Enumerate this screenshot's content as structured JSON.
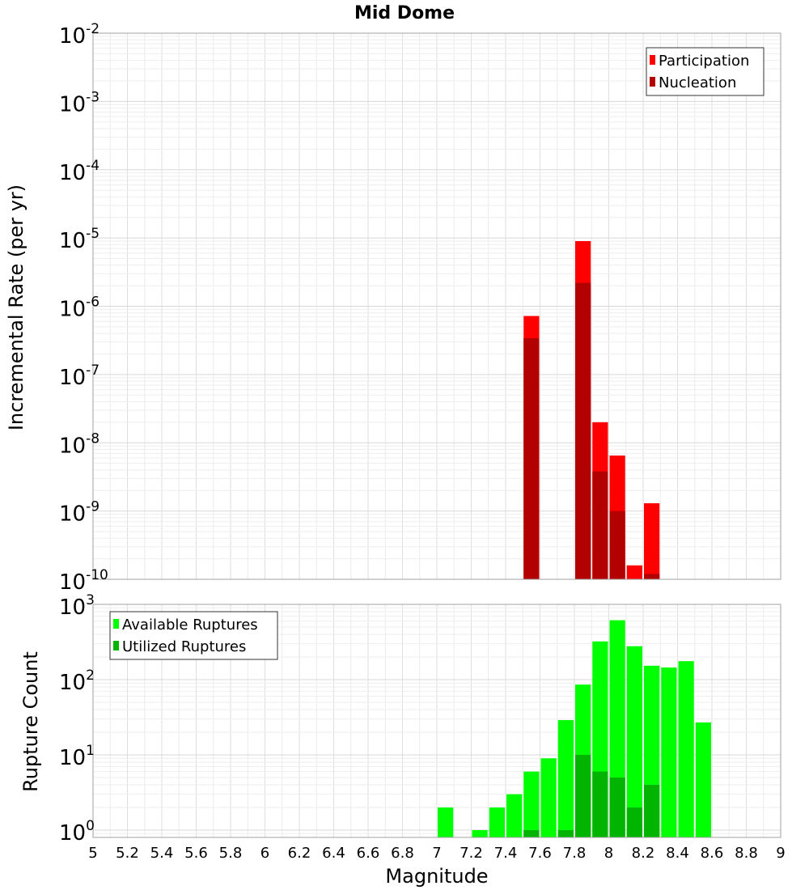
{
  "chart_data": [
    {
      "type": "bar",
      "title": "Mid Dome",
      "xlabel": "",
      "ylabel": "Incremental Rate (per yr)",
      "yscale": "log",
      "ylim": [
        1e-10,
        0.01
      ],
      "xlim": [
        5,
        9
      ],
      "bin_width": 0.1,
      "grid": true,
      "legend_position": "top-right",
      "y_ticks": [
        {
          "base": "10",
          "exp": "-2",
          "value": 0.01
        },
        {
          "base": "10",
          "exp": "-3",
          "value": 0.001
        },
        {
          "base": "10",
          "exp": "-4",
          "value": 0.0001
        },
        {
          "base": "10",
          "exp": "-5",
          "value": 1e-05
        },
        {
          "base": "10",
          "exp": "-6",
          "value": 1e-06
        },
        {
          "base": "10",
          "exp": "-7",
          "value": 1e-07
        },
        {
          "base": "10",
          "exp": "-8",
          "value": 1e-08
        },
        {
          "base": "10",
          "exp": "-9",
          "value": 1e-09
        },
        {
          "base": "10",
          "exp": "-10",
          "value": 1e-10
        }
      ],
      "series": [
        {
          "name": "Participation",
          "color": "#ff0000",
          "x": [
            7.55,
            7.85,
            7.95,
            8.05,
            8.15,
            8.25
          ],
          "values": [
            7.2e-07,
            9e-06,
            2e-08,
            6.5e-09,
            1.6e-10,
            1.3e-09
          ]
        },
        {
          "name": "Nucleation",
          "color": "#b30000",
          "x": [
            7.55,
            7.85,
            7.95,
            8.05,
            8.25
          ],
          "values": [
            3.4e-07,
            2.2e-06,
            3.8e-09,
            1e-09,
            1.2e-10
          ]
        }
      ]
    },
    {
      "type": "bar",
      "title": "",
      "xlabel": "Magnitude",
      "ylabel": "Rupture Count",
      "yscale": "log",
      "ylim": [
        0.8,
        1000
      ],
      "xlim": [
        5,
        9
      ],
      "bin_width": 0.1,
      "grid": true,
      "legend_position": "top-left",
      "y_ticks": [
        {
          "base": "10",
          "exp": "3",
          "value": 1000
        },
        {
          "base": "10",
          "exp": "2",
          "value": 100
        },
        {
          "base": "10",
          "exp": "1",
          "value": 10
        },
        {
          "base": "10",
          "exp": "0",
          "value": 1
        }
      ],
      "x_ticks": [
        "5",
        "5.2",
        "5.4",
        "5.6",
        "5.8",
        "6",
        "6.2",
        "6.4",
        "6.6",
        "6.8",
        "7",
        "7.2",
        "7.4",
        "7.6",
        "7.8",
        "8",
        "8.2",
        "8.4",
        "8.6",
        "8.8",
        "9"
      ],
      "series": [
        {
          "name": "Available Ruptures",
          "color": "#00ff00",
          "x": [
            7.05,
            7.25,
            7.35,
            7.45,
            7.55,
            7.65,
            7.75,
            7.85,
            7.95,
            8.05,
            8.15,
            8.25,
            8.35,
            8.45,
            8.55
          ],
          "values": [
            2,
            1,
            2,
            3,
            6,
            9,
            29,
            86,
            322,
            616,
            278,
            153,
            145,
            176,
            27
          ]
        },
        {
          "name": "Utilized Ruptures",
          "color": "#00b400",
          "x": [
            7.55,
            7.75,
            7.85,
            7.95,
            8.05,
            8.15,
            8.25
          ],
          "values": [
            1,
            1,
            10,
            6,
            5,
            2,
            4
          ]
        }
      ]
    }
  ]
}
